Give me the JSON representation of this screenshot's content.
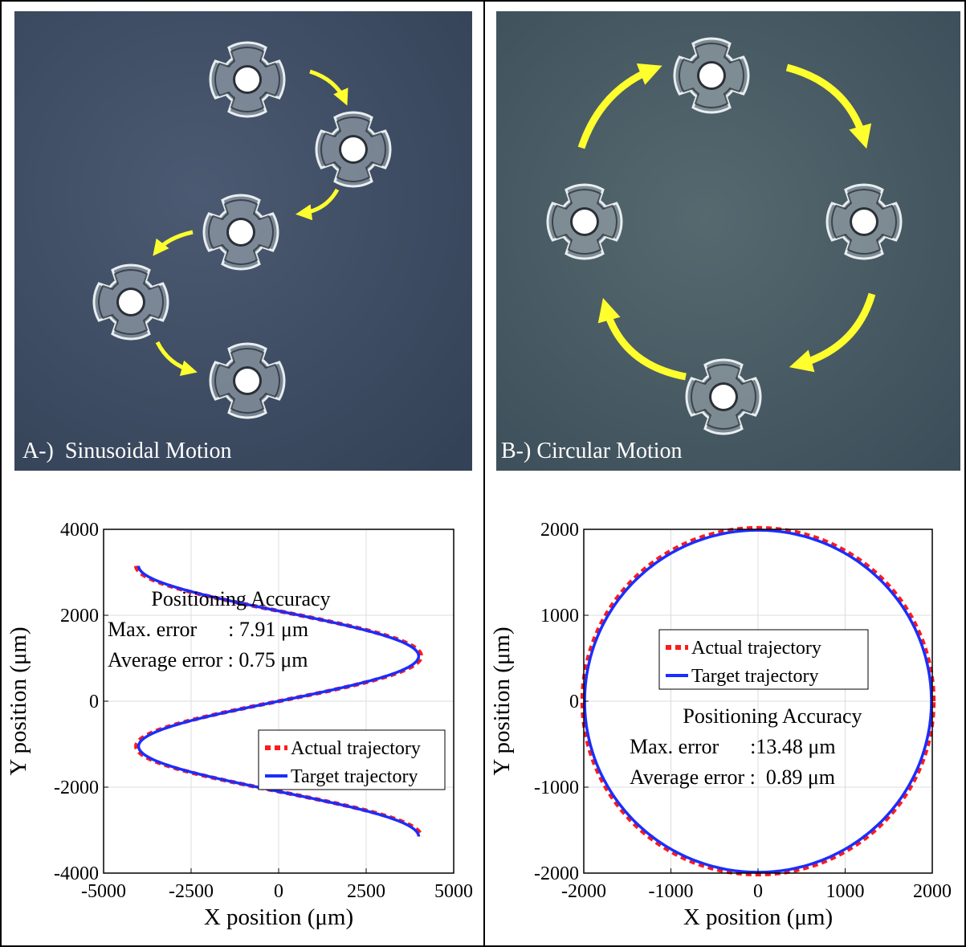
{
  "panels": [
    {
      "photo": {
        "caption": "A-)  Sinusoidal Motion",
        "background": "#3f4d63",
        "arrow_color": "#ffff2e",
        "robots": [
          {
            "x": 290,
            "y": 85
          },
          {
            "x": 422,
            "y": 172
          },
          {
            "x": 282,
            "y": 275
          },
          {
            "x": 145,
            "y": 362
          },
          {
            "x": 290,
            "y": 460
          }
        ]
      }
    },
    {
      "photo": {
        "caption": "B-) Circular Motion",
        "background": "#445a66",
        "arrow_color": "#ffff2e",
        "robots": [
          {
            "x": 268,
            "y": 80
          },
          {
            "x": 458,
            "y": 262
          },
          {
            "x": 283,
            "y": 480
          },
          {
            "x": 110,
            "y": 262
          }
        ]
      }
    }
  ],
  "chart_data": [
    {
      "type": "line",
      "xlabel": "X position (μm)",
      "ylabel": "Y position (μm)",
      "xlim": [
        -5000,
        5000
      ],
      "ylim": [
        -4000,
        4000
      ],
      "xticks": [
        -5000,
        -2500,
        0,
        2500,
        5000
      ],
      "xtick_labels": [
        "-5000",
        "-2500",
        "0",
        "2500",
        "5000"
      ],
      "yticks": [
        -4000,
        -2000,
        0,
        2000,
        4000
      ],
      "ytick_labels": [
        "-4000",
        "-2000",
        "0",
        "2000",
        "4000"
      ],
      "grid": true,
      "legend_position": "lower-right",
      "series": [
        {
          "name": "Actual trajectory",
          "color": "#ff1a1a",
          "style": "dashed",
          "shape": "sinusoid",
          "amplitude": 4070,
          "y_range": [
            -3150,
            3150
          ]
        },
        {
          "name": "Target trajectory",
          "color": "#1a2eff",
          "style": "solid",
          "shape": "sinusoid",
          "amplitude": 4000,
          "y_range": [
            -3150,
            3150
          ]
        }
      ],
      "annotation": {
        "title": "Positioning Accuracy",
        "max_error_label": "Max. error      : 7.91 μm",
        "avg_error_label": "Average error : 0.75 μm"
      }
    },
    {
      "type": "line",
      "xlabel": "X position (μm)",
      "ylabel": "Y position (μm)",
      "xlim": [
        -2000,
        2000
      ],
      "ylim": [
        -2000,
        2000
      ],
      "xticks": [
        -2000,
        -1000,
        0,
        1000,
        2000
      ],
      "xtick_labels": [
        "-2000",
        "-1000",
        "0",
        "1000",
        "2000"
      ],
      "yticks": [
        -2000,
        -1000,
        0,
        1000,
        2000
      ],
      "ytick_labels": [
        "-2000",
        "-1000",
        "0",
        "1000",
        "2000"
      ],
      "grid": true,
      "legend_position": "upper-center",
      "series": [
        {
          "name": "Actual trajectory",
          "color": "#ff1a1a",
          "style": "dashed",
          "shape": "circle",
          "radius": 2015
        },
        {
          "name": "Target trajectory",
          "color": "#1a2eff",
          "style": "solid",
          "shape": "circle",
          "radius": 1990
        }
      ],
      "annotation": {
        "title": "Positioning Accuracy",
        "max_error_label": "Max. error      :13.48 μm",
        "avg_error_label": "Average error :  0.89 μm"
      }
    }
  ]
}
